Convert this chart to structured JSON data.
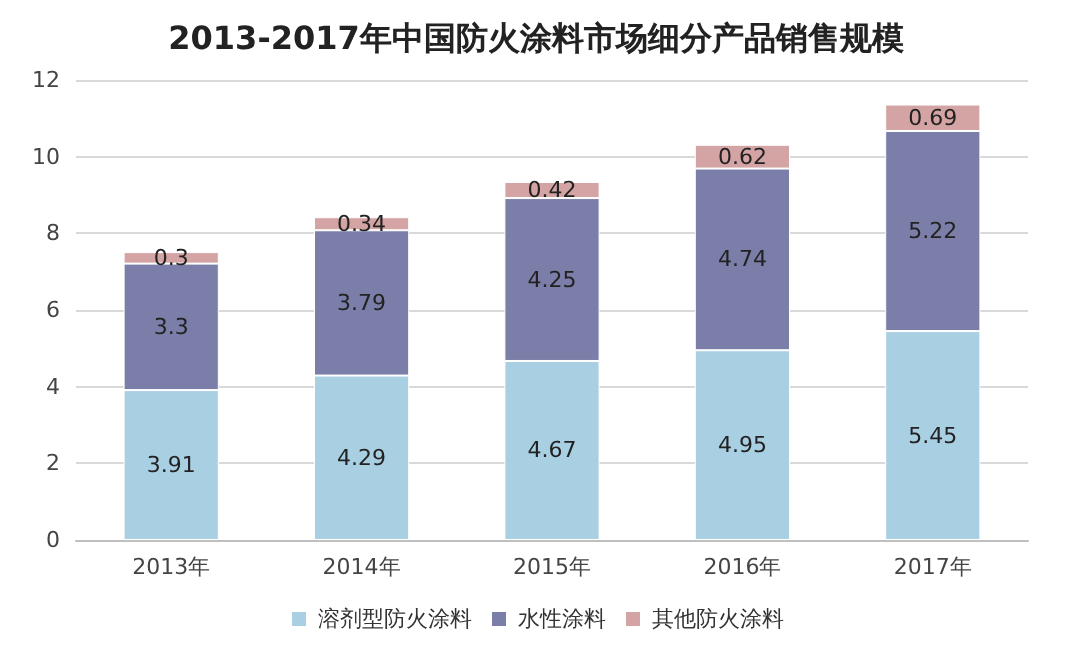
{
  "chart_data": {
    "type": "bar",
    "title": "2013-2017年中国防火涂料市场细分产品销售规模",
    "categories": [
      "2013年",
      "2014年",
      "2015年",
      "2016年",
      "2017年"
    ],
    "series": [
      {
        "name": "溶剂型防火涂料",
        "color": "#a9cfe3",
        "values": [
          3.91,
          4.29,
          4.67,
          4.95,
          5.45
        ]
      },
      {
        "name": "水性涂料",
        "color": "#7b7ea8",
        "values": [
          3.3,
          3.79,
          4.25,
          4.74,
          5.22
        ]
      },
      {
        "name": "其他防火涂料",
        "color": "#d4a3a3",
        "values": [
          0.3,
          0.34,
          0.42,
          0.62,
          0.69
        ]
      }
    ],
    "stacked": true,
    "data_labels": true,
    "ylim": [
      0,
      12
    ],
    "yticks": [
      0,
      2,
      4,
      6,
      8,
      10,
      12
    ],
    "grid": "y",
    "legend": "bottom"
  }
}
